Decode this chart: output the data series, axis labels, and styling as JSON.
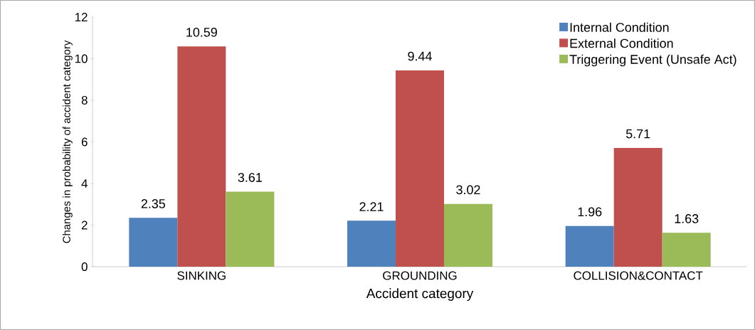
{
  "chart_data": {
    "type": "bar",
    "xlabel": "Accident category",
    "ylabel": "Changes in probability of accident category",
    "categories": [
      "SINKING",
      "GROUNDING",
      "COLLISION&CONTACT"
    ],
    "series": [
      {
        "name": "Internal Condition",
        "color": "#4f81bd",
        "values": [
          2.35,
          2.21,
          1.96
        ]
      },
      {
        "name": "External Condition",
        "color": "#c0504d",
        "values": [
          10.59,
          9.44,
          5.71
        ]
      },
      {
        "name": "Triggering Event (Unsafe Act)",
        "color": "#9bbb59",
        "values": [
          3.61,
          3.02,
          1.63
        ]
      }
    ],
    "ylim": [
      0,
      12
    ],
    "yticks": [
      0,
      2,
      4,
      6,
      8,
      10,
      12
    ],
    "data_labels": true,
    "legend": "top right"
  }
}
